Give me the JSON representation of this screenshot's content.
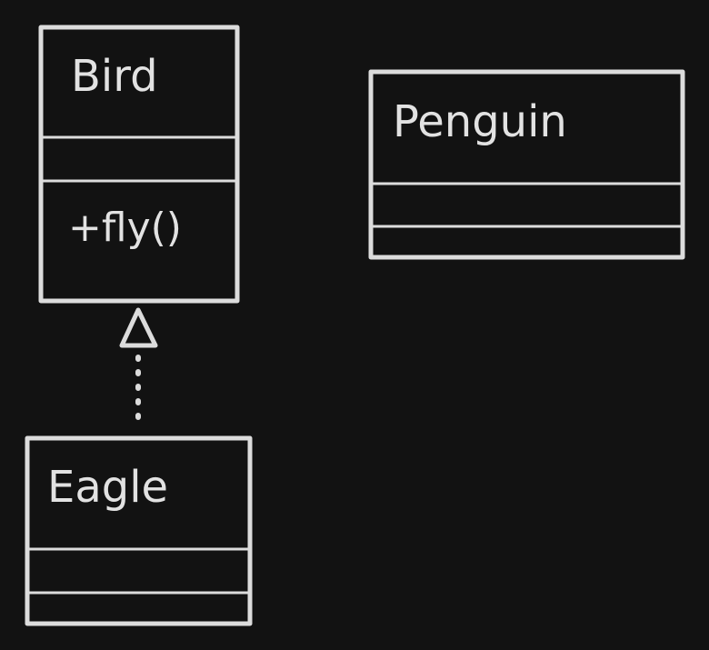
{
  "diagram": {
    "colors": {
      "background": "#121212",
      "stroke": "#dcdcdc",
      "text": "#e2e2e2"
    },
    "classes": [
      {
        "id": "bird",
        "name": "Bird",
        "methods": [
          "+fly()"
        ]
      },
      {
        "id": "penguin",
        "name": "Penguin",
        "methods": []
      },
      {
        "id": "eagle",
        "name": "Eagle",
        "methods": []
      }
    ],
    "relations": [
      {
        "type": "realization",
        "from": "eagle",
        "to": "bird",
        "style": "dotted-line-hollow-triangle"
      }
    ]
  }
}
